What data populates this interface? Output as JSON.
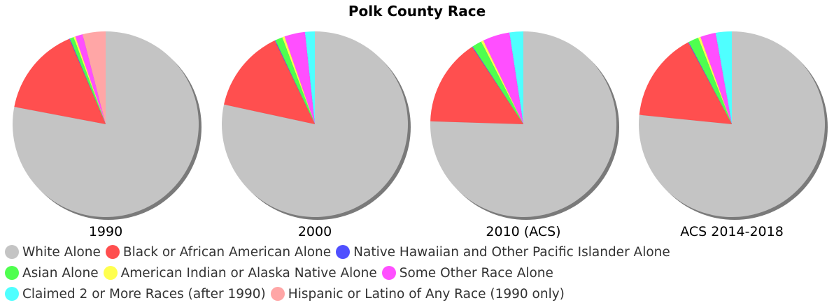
{
  "title": "Polk County Race",
  "chart_data": [
    {
      "type": "pie",
      "label": "1990",
      "series": [
        {
          "name": "White Alone",
          "value": 78.0
        },
        {
          "name": "Black or African American Alone",
          "value": 15.6
        },
        {
          "name": "Native Hawaiian and Other Pacific Islander Alone",
          "value": 0.1
        },
        {
          "name": "Asian Alone",
          "value": 0.7
        },
        {
          "name": "American Indian or Alaska Native Alone",
          "value": 0.3
        },
        {
          "name": "Some Other Race Alone",
          "value": 1.3
        },
        {
          "name": "Hispanic or Latino of Any Race (1990 only)",
          "value": 4.0
        }
      ]
    },
    {
      "type": "pie",
      "label": "2000",
      "series": [
        {
          "name": "White Alone",
          "value": 78.4
        },
        {
          "name": "Black or African American Alone",
          "value": 14.5
        },
        {
          "name": "Native Hawaiian and Other Pacific Islander Alone",
          "value": 0.1
        },
        {
          "name": "Asian Alone",
          "value": 1.3
        },
        {
          "name": "American Indian or Alaska Native Alone",
          "value": 0.4
        },
        {
          "name": "Some Other Race Alone",
          "value": 3.6
        },
        {
          "name": "Claimed 2 or More Races (after 1990)",
          "value": 1.7
        }
      ]
    },
    {
      "type": "pie",
      "label": "2010 (ACS)",
      "series": [
        {
          "name": "White Alone",
          "value": 75.5
        },
        {
          "name": "Black or African American Alone",
          "value": 15.2
        },
        {
          "name": "Native Hawaiian and Other Pacific Islander Alone",
          "value": 0.1
        },
        {
          "name": "Asian Alone",
          "value": 1.7
        },
        {
          "name": "American Indian or Alaska Native Alone",
          "value": 0.4
        },
        {
          "name": "Some Other Race Alone",
          "value": 4.7
        },
        {
          "name": "Claimed 2 or More Races (after 1990)",
          "value": 2.4
        }
      ]
    },
    {
      "type": "pie",
      "label": "ACS 2014-2018",
      "series": [
        {
          "name": "White Alone",
          "value": 76.6
        },
        {
          "name": "Black or African American Alone",
          "value": 15.6
        },
        {
          "name": "Native Hawaiian and Other Pacific Islander Alone",
          "value": 0.1
        },
        {
          "name": "Asian Alone",
          "value": 1.8
        },
        {
          "name": "American Indian or Alaska Native Alone",
          "value": 0.4
        },
        {
          "name": "Some Other Race Alone",
          "value": 2.7
        },
        {
          "name": "Claimed 2 or More Races (after 1990)",
          "value": 2.8
        }
      ]
    }
  ],
  "legend": {
    "rows": [
      [
        {
          "label": "White Alone",
          "color": "#c4c4c4"
        },
        {
          "label": "Black or African American Alone",
          "color": "#ff4f4f"
        },
        {
          "label": "Native Hawaiian and Other Pacific Islander Alone",
          "color": "#4f4fff"
        }
      ],
      [
        {
          "label": "Asian Alone",
          "color": "#4fff4f"
        },
        {
          "label": "American Indian or Alaska Native Alone",
          "color": "#ffff4f"
        },
        {
          "label": "Some Other Race Alone",
          "color": "#ff4fff"
        }
      ],
      [
        {
          "label": "Claimed 2 or More Races (after 1990)",
          "color": "#4fffff"
        },
        {
          "label": "Hispanic or Latino of Any Race (1990 only)",
          "color": "#ffa6a6"
        }
      ]
    ]
  },
  "colors": {
    "White Alone": "#c4c4c4",
    "Black or African American Alone": "#ff4f4f",
    "Native Hawaiian and Other Pacific Islander Alone": "#4f4fff",
    "Asian Alone": "#4fff4f",
    "American Indian or Alaska Native Alone": "#ffff4f",
    "Some Other Race Alone": "#ff4fff",
    "Claimed 2 or More Races (after 1990)": "#4fffff",
    "Hispanic or Latino of Any Race (1990 only)": "#ffa6a6"
  }
}
